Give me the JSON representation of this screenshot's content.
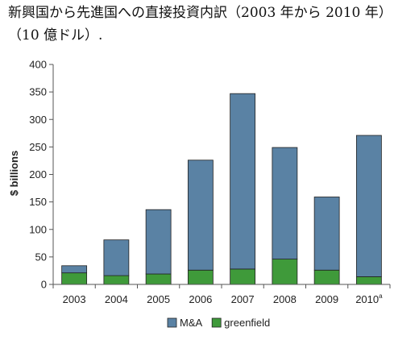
{
  "chart_data": {
    "type": "bar",
    "stacked": true,
    "title_line1": "新興国から先進国への直接投資内訳（2003 年から 2010 年）",
    "title_line2": "（10 億ドル）.",
    "ylabel": "$ billions",
    "xlabel": "",
    "ylim": [
      0,
      400
    ],
    "yticks": [
      "0",
      "50",
      "100",
      "150",
      "200",
      "250",
      "300",
      "350",
      "400"
    ],
    "categories": [
      "2003",
      "2004",
      "2005",
      "2006",
      "2007",
      "2008",
      "2009",
      "2010"
    ],
    "category_footnotes": [
      "",
      "",
      "",
      "",
      "",
      "",
      "",
      "a"
    ],
    "series": [
      {
        "name": "greenfield",
        "color": "#3f9a3a",
        "values": [
          21,
          16,
          19,
          26,
          28,
          46,
          26,
          14
        ]
      },
      {
        "name": "M&A",
        "color": "#5a82a4",
        "values": [
          13,
          65,
          117,
          200,
          319,
          203,
          133,
          257
        ]
      }
    ],
    "legend": {
      "position": "bottom",
      "order": [
        "M&A",
        "greenfield"
      ]
    },
    "grid": false
  }
}
